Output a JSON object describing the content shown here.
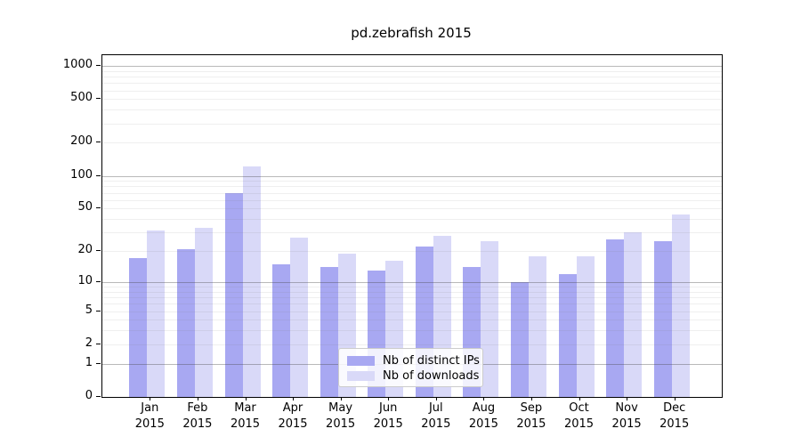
{
  "title": "pd.zebrafish 2015",
  "legend": {
    "items": [
      {
        "label": "Nb of distinct IPs",
        "color": "#a8a8f2"
      },
      {
        "label": "Nb of downloads",
        "color": "#d9d9f8"
      }
    ]
  },
  "axis": {
    "ytick_labels": [
      "0",
      "1",
      "2",
      "5",
      "10",
      "20",
      "50",
      "100",
      "200",
      "500",
      "1000"
    ],
    "year_label": "2015"
  },
  "colors": {
    "bar_distinct_ips": "#a8a8f2",
    "bar_downloads": "#d9d9f8",
    "grid_major": "rgba(70,70,70,0.38)",
    "grid_minor": "rgba(120,120,120,0.12)",
    "axis_line": "#000000",
    "background": "#ffffff"
  },
  "chart_data": {
    "type": "bar",
    "title": "pd.zebrafish 2015",
    "scale": "log1p",
    "categories": [
      "Jan",
      "Feb",
      "Mar",
      "Apr",
      "May",
      "Jun",
      "Jul",
      "Aug",
      "Sep",
      "Oct",
      "Nov",
      "Dec"
    ],
    "year": "2015",
    "series": [
      {
        "name": "Nb of distinct IPs",
        "color": "#a8a8f2",
        "values": [
          17,
          21,
          70,
          15,
          14,
          13,
          22,
          14,
          10,
          12,
          26,
          25
        ]
      },
      {
        "name": "Nb of downloads",
        "color": "#d9d9f8",
        "values": [
          31,
          33,
          122,
          27,
          19,
          16,
          28,
          25,
          18,
          18,
          30,
          44
        ]
      }
    ],
    "yticks": [
      0,
      1,
      2,
      5,
      10,
      20,
      50,
      100,
      200,
      500,
      1000
    ],
    "minor_gridlines": [
      2,
      3,
      4,
      5,
      6,
      7,
      8,
      9,
      20,
      30,
      40,
      50,
      60,
      70,
      80,
      90,
      200,
      300,
      400,
      500,
      600,
      700,
      800,
      900
    ],
    "major_gridlines": [
      1,
      10,
      100,
      1000
    ],
    "ylim": [
      0,
      1250
    ],
    "xlabel": "",
    "ylabel": "",
    "grid": true,
    "legend_position": "lower center"
  }
}
